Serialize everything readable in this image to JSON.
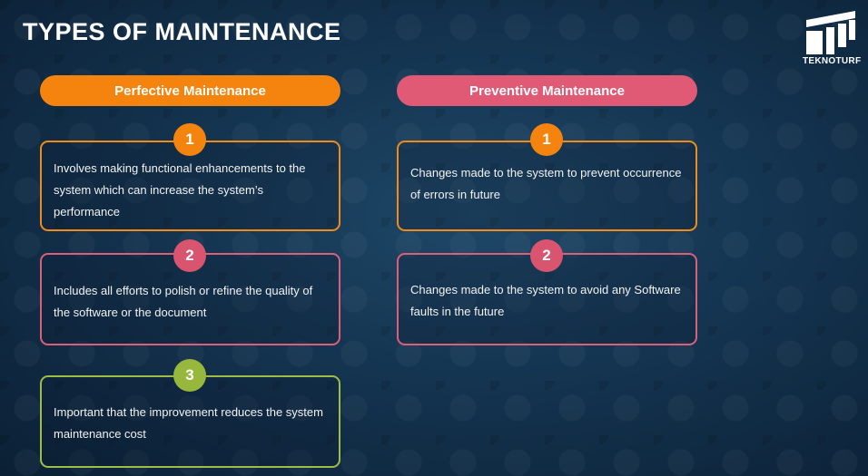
{
  "title": "TYPES OF MAINTENANCE",
  "logo": {
    "text": "TEKNOTURF"
  },
  "columns": [
    {
      "header": "Perfective Maintenance",
      "color": "#f5840e",
      "items": [
        {
          "number": "1",
          "text": "Involves making functional enhancements to the system which can increase the system’s performance"
        },
        {
          "number": "2",
          "text": "Includes all efforts to polish  or refine the quality of the software or the document"
        },
        {
          "number": "3",
          "text": "Important that the improvement reduces the system maintenance cost"
        }
      ]
    },
    {
      "header": "Preventive Maintenance",
      "color": "#e05a76",
      "items": [
        {
          "number": "1",
          "text": "Changes made to the system to prevent occurrence of errors in future"
        },
        {
          "number": "2",
          "text": "Changes made to the system to avoid any Software faults in the future"
        }
      ]
    }
  ]
}
